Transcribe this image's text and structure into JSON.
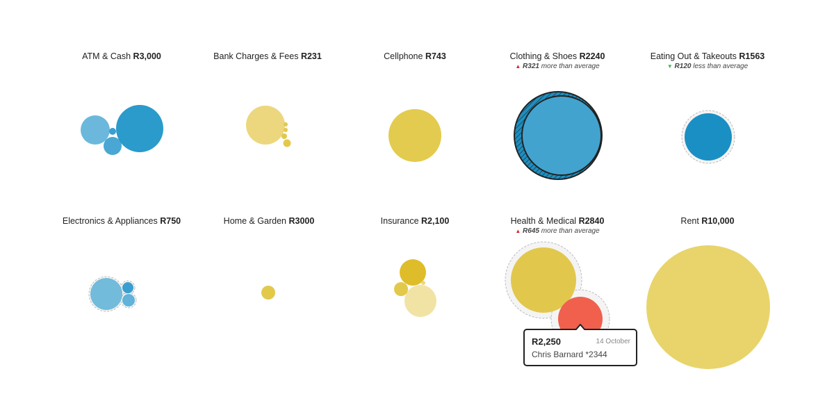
{
  "chart_data": {
    "type": "bubble",
    "categories": [
      {
        "name": "ATM & Cash",
        "total": "R3,000",
        "color": "#2a9bcb"
      },
      {
        "name": "Bank Charges & Fees",
        "total": "R231",
        "color": "#ecd77e"
      },
      {
        "name": "Cellphone",
        "total": "R743",
        "color": "#e3cb4f"
      },
      {
        "name": "Clothing & Shoes",
        "total": "R2240",
        "diff": "R321",
        "diff_text": "more than average",
        "trend": "up",
        "color": "#43a3cf"
      },
      {
        "name": "Eating Out & Takeouts",
        "total": "R1563",
        "diff": "R120",
        "diff_text": "less than average",
        "trend": "down",
        "color": "#1a8fc4"
      },
      {
        "name": "Electronics & Appliances",
        "total": "R750",
        "color": "#72bbdb"
      },
      {
        "name": "Home & Garden",
        "total": "R3000",
        "color": "#e3c94a"
      },
      {
        "name": "Insurance",
        "total": "R2,100",
        "color": "#dfbd2a"
      },
      {
        "name": "Health & Medical",
        "total": "R2840",
        "diff": "R645",
        "diff_text": "more than average",
        "trend": "up",
        "color": "#e2c74d"
      },
      {
        "name": "Rent",
        "total": "R10,000",
        "color": "#e8d46a"
      }
    ]
  },
  "tooltip": {
    "amount": "R2,250",
    "date": "14 October",
    "merchant": "Chris Barnard *2344",
    "color": "#f0604d"
  }
}
